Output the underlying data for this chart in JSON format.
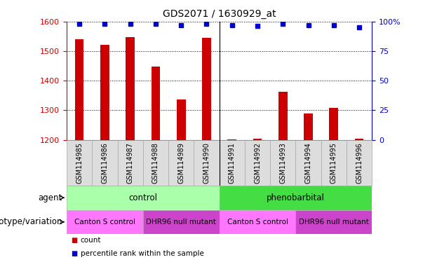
{
  "title": "GDS2071 / 1630929_at",
  "samples": [
    "GSM114985",
    "GSM114986",
    "GSM114987",
    "GSM114988",
    "GSM114989",
    "GSM114990",
    "GSM114991",
    "GSM114992",
    "GSM114993",
    "GSM114994",
    "GSM114995",
    "GSM114996"
  ],
  "counts": [
    1540,
    1522,
    1548,
    1447,
    1336,
    1545,
    1202,
    1204,
    1362,
    1290,
    1308,
    1205
  ],
  "percentile_ranks": [
    98,
    98,
    98,
    98,
    97,
    98,
    97,
    96,
    98,
    97,
    97,
    95
  ],
  "bar_color": "#cc0000",
  "dot_color": "#0000cc",
  "ylim_left": [
    1200,
    1600
  ],
  "ylim_right": [
    0,
    100
  ],
  "yticks_left": [
    1200,
    1300,
    1400,
    1500,
    1600
  ],
  "yticks_right": [
    0,
    25,
    50,
    75,
    100
  ],
  "agent_groups": [
    {
      "label": "control",
      "start": 0,
      "end": 6,
      "color": "#aaffaa"
    },
    {
      "label": "phenobarbital",
      "start": 6,
      "end": 12,
      "color": "#44dd44"
    }
  ],
  "genotype_groups": [
    {
      "label": "Canton S control",
      "start": 0,
      "end": 3,
      "color": "#ff77ff"
    },
    {
      "label": "DHR96 null mutant",
      "start": 3,
      "end": 6,
      "color": "#cc44cc"
    },
    {
      "label": "Canton S control",
      "start": 6,
      "end": 9,
      "color": "#ff77ff"
    },
    {
      "label": "DHR96 null mutant",
      "start": 9,
      "end": 12,
      "color": "#cc44cc"
    }
  ],
  "agent_label": "agent",
  "genotype_label": "genotype/variation",
  "legend_count": "count",
  "legend_pct": "percentile rank within the sample",
  "title_fontsize": 10,
  "axis_label_color_left": "#cc0000",
  "axis_label_color_right": "#0000cc",
  "bar_width": 0.35,
  "xtick_bg": "#dddddd",
  "grid_color": "black",
  "grid_style": "dotted"
}
